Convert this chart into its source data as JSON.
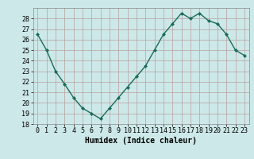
{
  "x": [
    0,
    1,
    2,
    3,
    4,
    5,
    6,
    7,
    8,
    9,
    10,
    11,
    12,
    13,
    14,
    15,
    16,
    17,
    18,
    19,
    20,
    21,
    22,
    23
  ],
  "y": [
    26.5,
    25.0,
    23.0,
    21.8,
    20.5,
    19.5,
    19.0,
    18.5,
    19.5,
    20.5,
    21.5,
    22.5,
    23.5,
    25.0,
    26.5,
    27.5,
    28.5,
    28.0,
    28.5,
    27.8,
    27.5,
    26.5,
    25.0,
    24.5
  ],
  "line_color": "#1a6b5a",
  "marker": "D",
  "marker_size": 2,
  "bg_color": "#cde8e8",
  "grid_color": "#b8a0a0",
  "xlabel": "Humidex (Indice chaleur)",
  "ylim": [
    18,
    29
  ],
  "yticks": [
    18,
    19,
    20,
    21,
    22,
    23,
    24,
    25,
    26,
    27,
    28
  ],
  "xticks": [
    0,
    1,
    2,
    3,
    4,
    5,
    6,
    7,
    8,
    9,
    10,
    11,
    12,
    13,
    14,
    15,
    16,
    17,
    18,
    19,
    20,
    21,
    22,
    23
  ],
  "xlim": [
    -0.5,
    23.5
  ],
  "xlabel_fontsize": 7,
  "tick_fontsize": 6,
  "linewidth": 1.0
}
